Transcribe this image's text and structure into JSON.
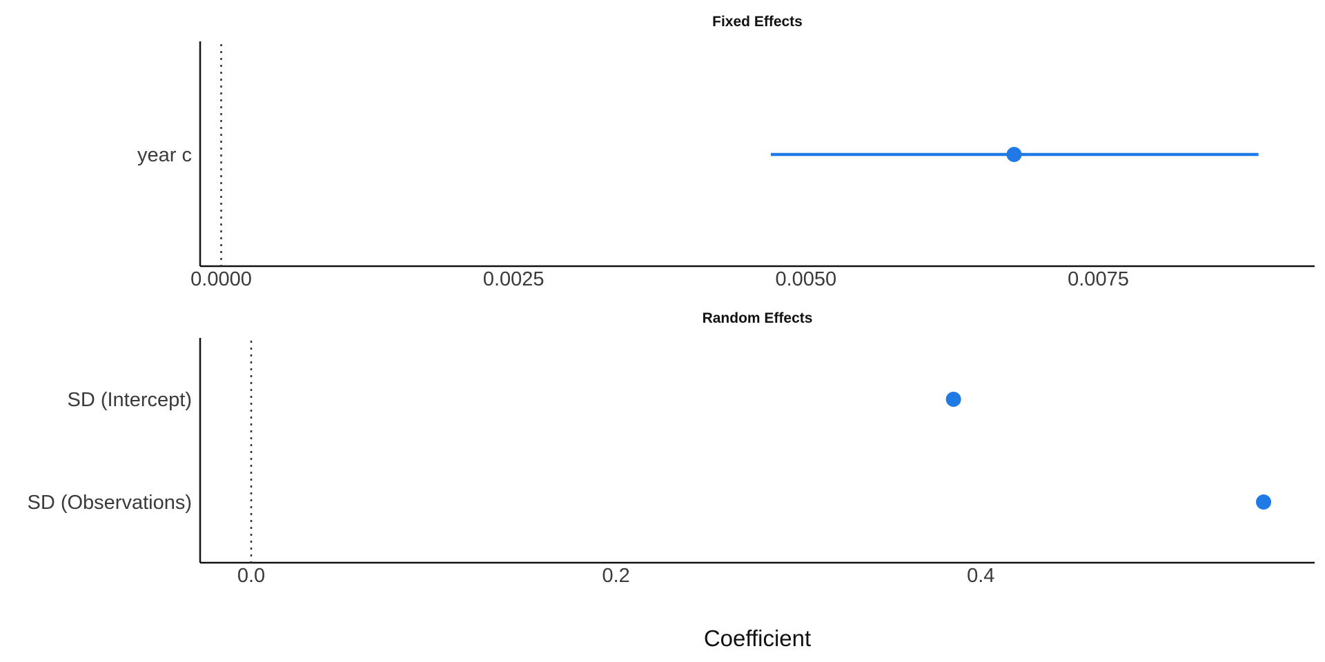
{
  "chart_data": {
    "type": "scatter",
    "xlabel": "Coefficient",
    "marker_color": "#1f7ae6",
    "reference_line": 0,
    "panels": [
      {
        "title": "Fixed Effects",
        "xlim": [
          -0.00018,
          0.00935
        ],
        "xticks": [
          0,
          0.0025,
          0.005,
          0.0075
        ],
        "xtick_labels": [
          "0.0000",
          "0.0025",
          "0.0050",
          "0.0075"
        ],
        "categories": [
          "year c"
        ],
        "points": [
          {
            "label": "year c",
            "estimate": 0.00678,
            "ci_low": 0.0047,
            "ci_high": 0.00887
          }
        ]
      },
      {
        "title": "Random Effects",
        "xlim": [
          -0.028,
          0.583
        ],
        "xticks": [
          0,
          0.2,
          0.4
        ],
        "xtick_labels": [
          "0.0",
          "0.2",
          "0.4"
        ],
        "categories": [
          "SD (Intercept)",
          "SD (Observations)"
        ],
        "points": [
          {
            "label": "SD (Intercept)",
            "estimate": 0.385
          },
          {
            "label": "SD (Observations)",
            "estimate": 0.555
          }
        ]
      }
    ]
  }
}
